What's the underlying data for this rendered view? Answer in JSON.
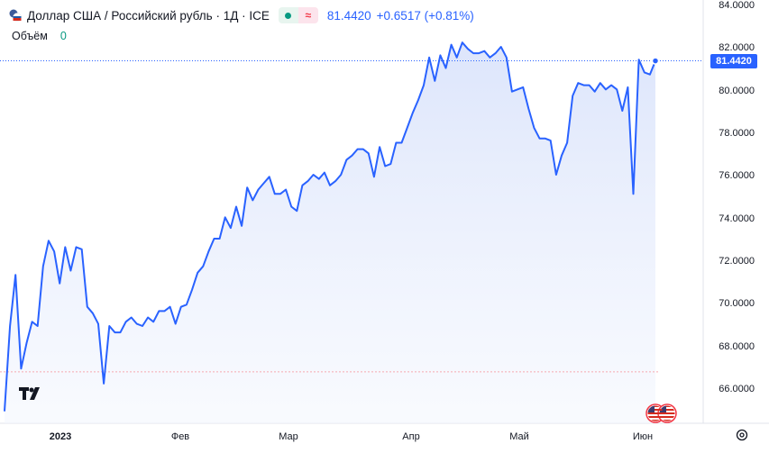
{
  "header": {
    "title": "Доллар США / Российский рубль · 1Д · ICE",
    "badge_approx": "≈",
    "price": "81.4420",
    "change": "+0.6517 (+0.81%)"
  },
  "volume": {
    "label": "Объём",
    "value": "0"
  },
  "price_tag": "81.4420",
  "colors": {
    "line": "#2962ff",
    "fill": "#dbe4fb",
    "last_price": "#2962ff",
    "up": "#089981",
    "down": "#f23645"
  },
  "icons": [
    "flag-icon",
    "tradingview-logo-icon",
    "us-flag-event-icon",
    "gear-icon"
  ],
  "chart_data": {
    "type": "area",
    "symbol": "USD/RUB",
    "yticks": [
      "84.0000",
      "82.0000",
      "80.0000",
      "78.0000",
      "76.0000",
      "74.0000",
      "72.0000",
      "70.0000",
      "68.0000",
      "66.0000"
    ],
    "ylim": [
      64.9,
      84.3
    ],
    "xlabels": [
      "2023",
      "Фев",
      "Мар",
      "Апр",
      "Май",
      "Июн"
    ],
    "last_value": 81.442,
    "previous_close_line": 66.85,
    "values": [
      65.0,
      69.0,
      71.4,
      67.0,
      68.2,
      69.2,
      69.0,
      71.8,
      73.0,
      72.5,
      71.0,
      72.7,
      71.6,
      72.7,
      72.6,
      69.9,
      69.6,
      69.1,
      66.3,
      69.0,
      68.7,
      68.7,
      69.2,
      69.4,
      69.1,
      69.0,
      69.4,
      69.2,
      69.7,
      69.7,
      69.9,
      69.1,
      69.9,
      70.0,
      70.7,
      71.5,
      71.8,
      72.5,
      73.1,
      73.1,
      74.1,
      73.6,
      74.6,
      73.7,
      75.5,
      74.9,
      75.4,
      75.7,
      76.0,
      75.2,
      75.2,
      75.4,
      74.6,
      74.4,
      75.6,
      75.8,
      76.1,
      75.9,
      76.2,
      75.6,
      75.8,
      76.1,
      76.8,
      77.0,
      77.3,
      77.3,
      77.1,
      76.0,
      77.4,
      76.5,
      76.6,
      77.6,
      77.6,
      78.3,
      79.0,
      79.6,
      80.3,
      81.6,
      80.5,
      81.7,
      81.1,
      82.2,
      81.6,
      82.3,
      82.0,
      81.8,
      81.8,
      81.9,
      81.6,
      81.8,
      82.1,
      81.6,
      80.0,
      80.1,
      80.2,
      79.2,
      78.3,
      77.8,
      77.8,
      77.7,
      76.1,
      77.0,
      77.6,
      79.8,
      80.4,
      80.3,
      80.3,
      80.0,
      80.4,
      80.1,
      80.3,
      80.1,
      79.1,
      80.2,
      75.2,
      81.5,
      80.9,
      80.8,
      81.44
    ]
  }
}
